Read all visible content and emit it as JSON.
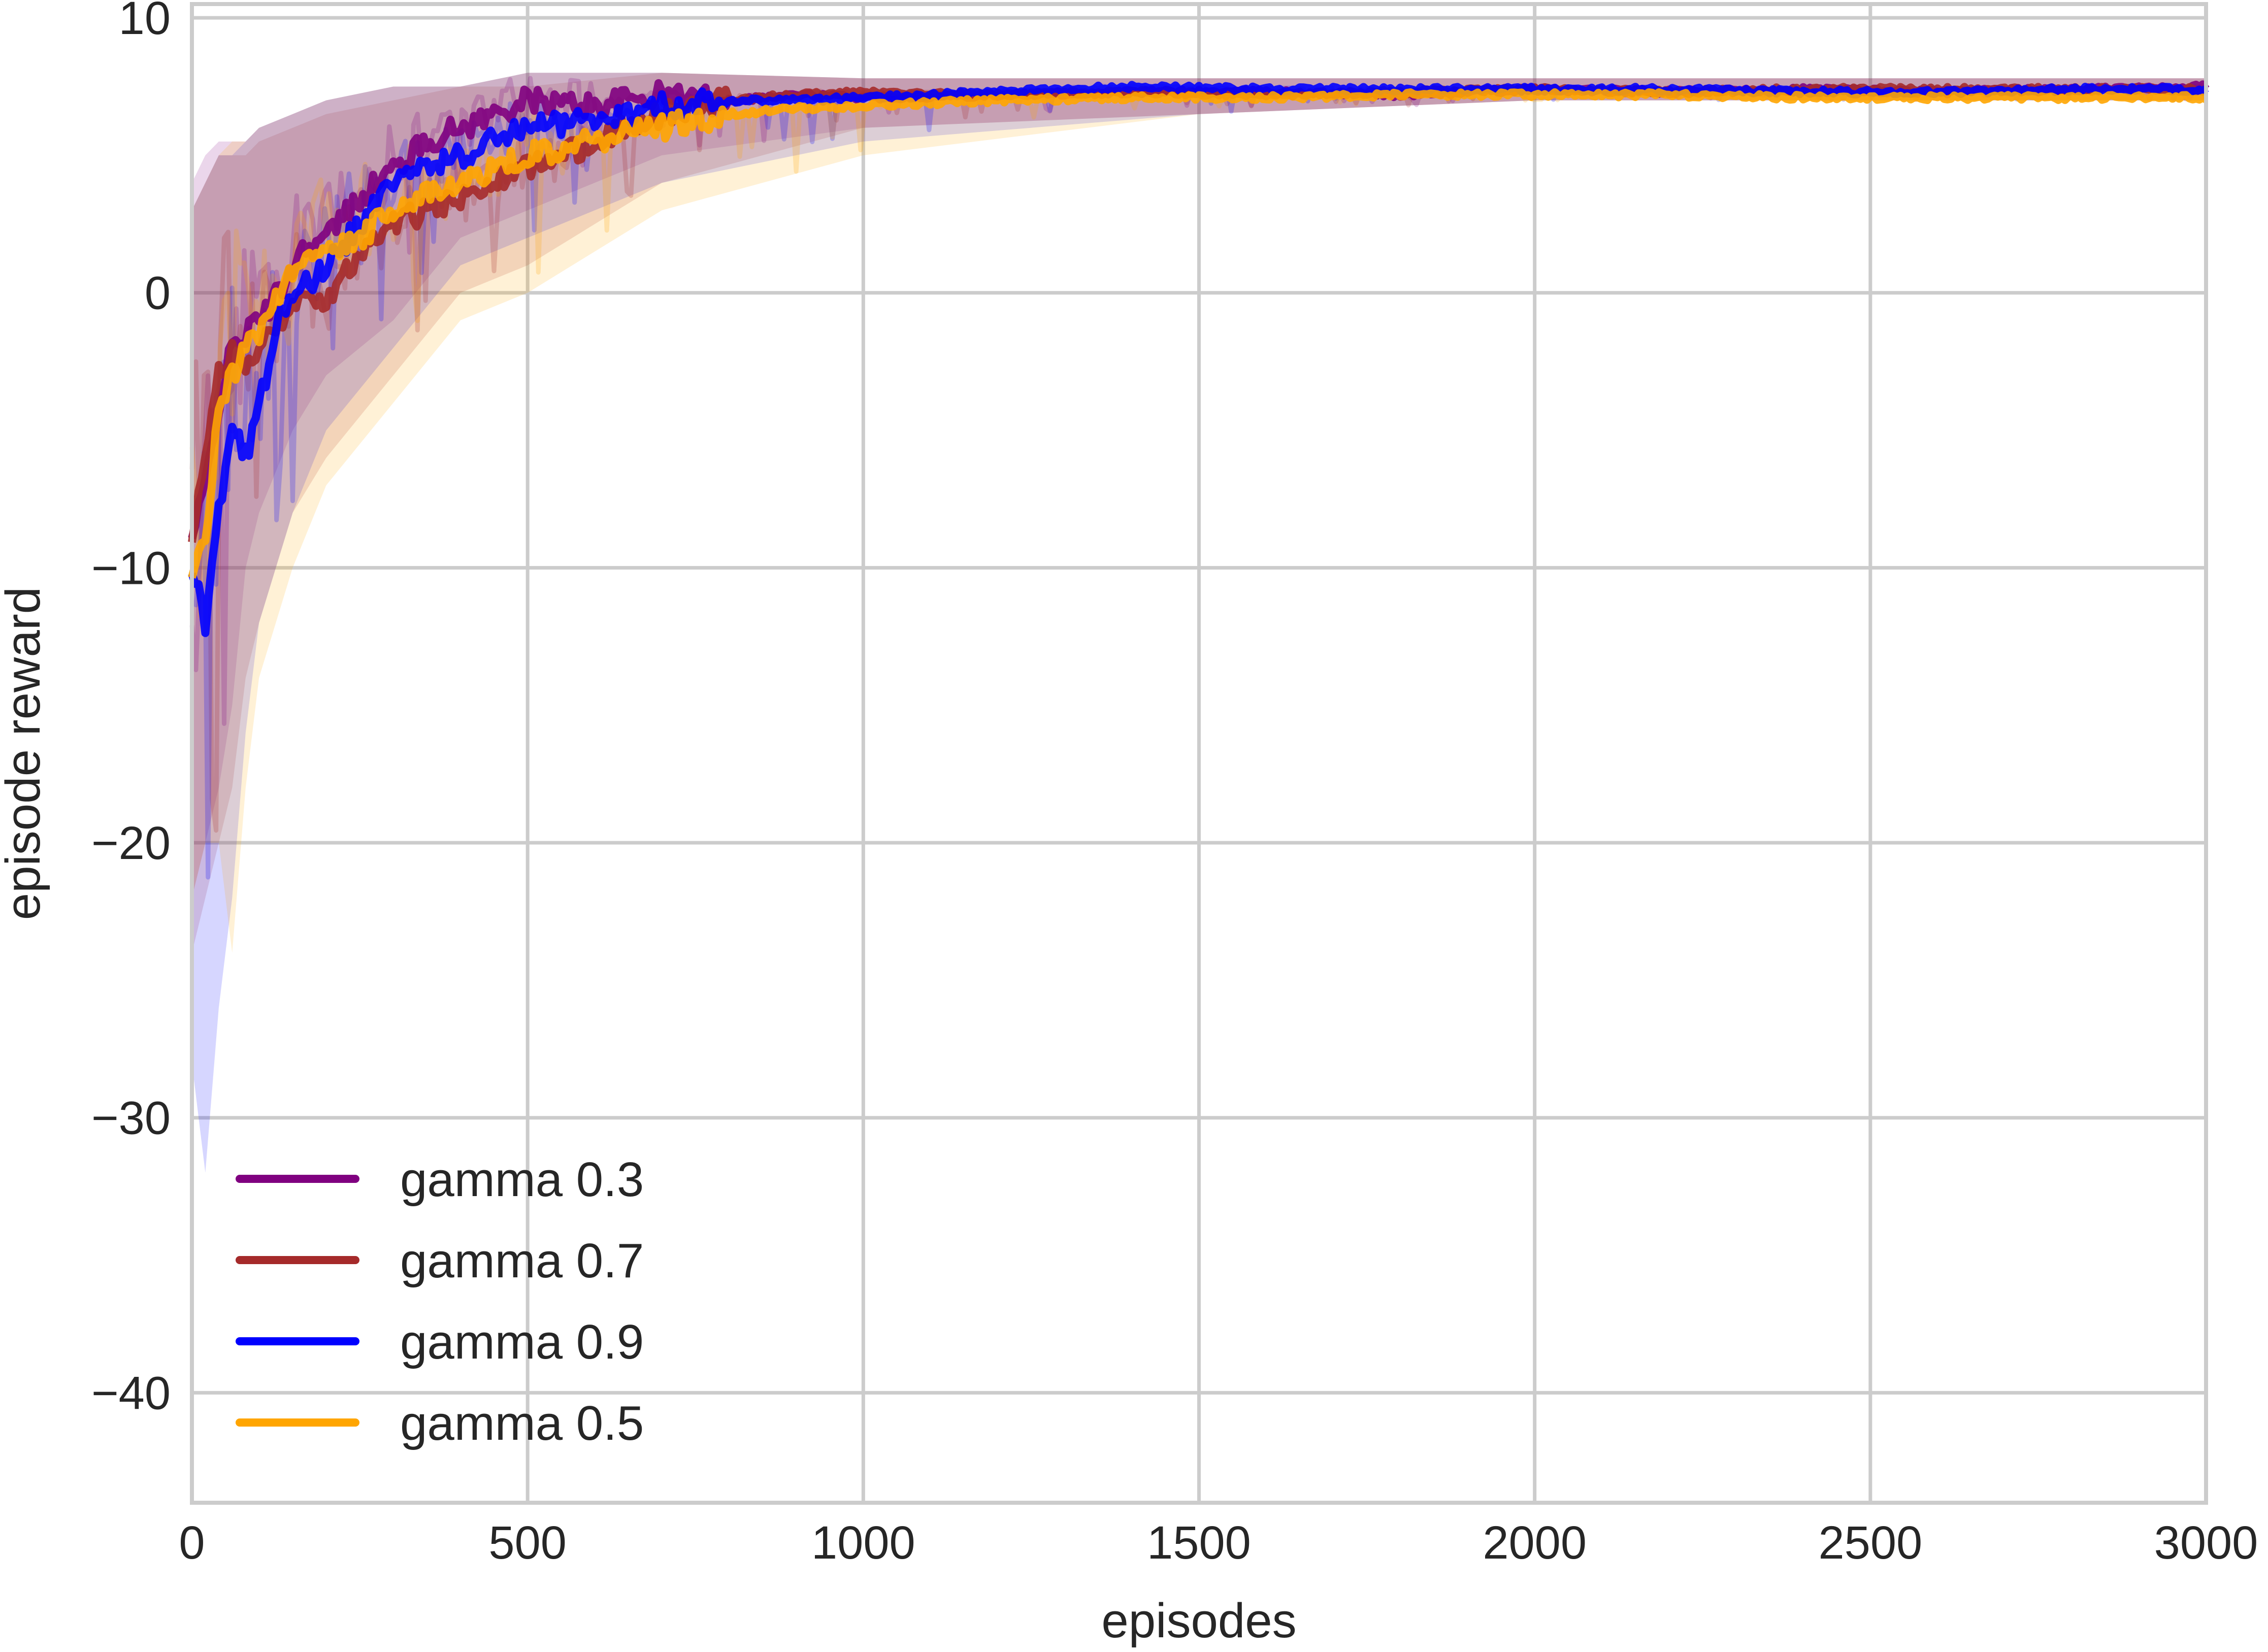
{
  "chart_data": {
    "type": "line",
    "title": "",
    "xlabel": "episodes",
    "ylabel": "episode reward",
    "xlim": [
      0,
      3000
    ],
    "ylim": [
      -44,
      10.5
    ],
    "xticks": [
      0,
      500,
      1000,
      1500,
      2000,
      2500,
      3000
    ],
    "xtick_labels": [
      "0",
      "500",
      "1000",
      "1500",
      "2000",
      "2500",
      "3000"
    ],
    "yticks": [
      10,
      0,
      -10,
      -20,
      -30,
      -40
    ],
    "ytick_labels": [
      "10",
      "0",
      "−10",
      "−20",
      "−30",
      "−40"
    ],
    "grid": true,
    "legend_position": "lower-left",
    "series": [
      {
        "name": "gamma 0.3",
        "color": "#800080",
        "smoothed": {
          "x": [
            0,
            20,
            40,
            60,
            80,
            100,
            130,
            160,
            200,
            250,
            300,
            350,
            400,
            450,
            500,
            600,
            700,
            800,
            900,
            1000,
            1200,
            1400,
            1600,
            1800,
            2000,
            2200,
            2400,
            2600,
            2800,
            3000
          ],
          "y": [
            -9,
            -7,
            -4,
            -2,
            -1.5,
            -1,
            0,
            1.5,
            2,
            3.5,
            4.5,
            5.5,
            6,
            6.5,
            7,
            6.8,
            7.2,
            7,
            7.2,
            7.1,
            7.2,
            7.3,
            7.3,
            7.2,
            7.4,
            7.3,
            7.4,
            7.3,
            7.4,
            7.5
          ]
        },
        "raw_band": {
          "x": [
            0,
            20,
            40,
            60,
            80,
            100,
            150,
            200,
            300,
            400,
            500,
            700,
            1000,
            1500,
            2000,
            2500,
            3000
          ],
          "lower": [
            -22,
            -20,
            -18,
            -15,
            -10,
            -8,
            -5,
            -3,
            -1,
            2,
            3,
            5,
            6,
            6.5,
            7,
            7,
            7
          ],
          "upper": [
            4,
            5,
            5.5,
            5.5,
            5.5,
            6,
            6.5,
            7,
            7.5,
            7.5,
            8,
            8,
            7.8,
            7.8,
            7.8,
            7.8,
            7.8
          ]
        }
      },
      {
        "name": "gamma 0.7",
        "color": "#a52a2a",
        "smoothed": {
          "x": [
            0,
            20,
            40,
            60,
            80,
            100,
            130,
            160,
            200,
            250,
            300,
            350,
            400,
            450,
            500,
            600,
            700,
            800,
            900,
            1000,
            1200,
            1400,
            1600,
            1800,
            2000,
            2200,
            2400,
            2600,
            2800,
            3000
          ],
          "y": [
            -9,
            -6,
            -3,
            -2,
            -2.5,
            -2,
            -1,
            0,
            -0.5,
            1.5,
            2.5,
            3,
            3.5,
            4,
            4.5,
            5.5,
            6.5,
            7,
            7.2,
            7.3,
            7.2,
            7.3,
            7.2,
            7.3,
            7.4,
            7.3,
            7.4,
            7.4,
            7.4,
            7.4
          ]
        },
        "raw_band": {
          "x": [
            0,
            20,
            40,
            60,
            80,
            100,
            150,
            200,
            300,
            400,
            500,
            700,
            1000,
            1500,
            2000,
            2500,
            3000
          ],
          "lower": [
            -24,
            -22,
            -20,
            -18,
            -14,
            -12,
            -8,
            -6,
            -3,
            0,
            1,
            4,
            6,
            6.5,
            7,
            7,
            7
          ],
          "upper": [
            3,
            4,
            5,
            5,
            5,
            5.5,
            6,
            6.5,
            7,
            7.5,
            7.5,
            8,
            7.8,
            7.8,
            7.8,
            7.8,
            7.8
          ]
        }
      },
      {
        "name": "gamma 0.9",
        "color": "#0000ff",
        "smoothed": {
          "x": [
            0,
            20,
            40,
            60,
            80,
            100,
            130,
            160,
            200,
            250,
            300,
            350,
            400,
            450,
            500,
            600,
            700,
            800,
            900,
            1000,
            1200,
            1400,
            1600,
            1800,
            2000,
            2200,
            2400,
            2600,
            2800,
            3000
          ],
          "y": [
            -10,
            -12,
            -8,
            -5,
            -6,
            -4,
            -1,
            0,
            1,
            2.5,
            4,
            4.5,
            5,
            5.5,
            6,
            6.3,
            6.8,
            7,
            7,
            7.1,
            7.3,
            7.5,
            7.4,
            7.4,
            7.4,
            7.4,
            7.3,
            7.3,
            7.4,
            7.4
          ]
        },
        "raw_band": {
          "x": [
            0,
            20,
            40,
            60,
            80,
            100,
            150,
            200,
            300,
            400,
            500,
            700,
            1000,
            1500,
            2000,
            2500,
            3000
          ],
          "lower": [
            -28,
            -32,
            -26,
            -22,
            -16,
            -12,
            -8,
            -5,
            -2,
            1,
            2,
            4,
            5.5,
            6.5,
            7,
            7,
            7
          ],
          "upper": [
            3,
            4,
            5,
            5,
            5.5,
            6,
            6.5,
            7,
            7.5,
            7.5,
            8,
            8,
            7.8,
            7.8,
            7.8,
            7.8,
            7.8
          ]
        }
      },
      {
        "name": "gamma 0.5",
        "color": "#ffa500",
        "smoothed": {
          "x": [
            0,
            20,
            40,
            60,
            80,
            100,
            130,
            160,
            200,
            250,
            300,
            350,
            400,
            450,
            500,
            600,
            700,
            800,
            900,
            1000,
            1200,
            1400,
            1600,
            1800,
            2000,
            2200,
            2400,
            2600,
            2800,
            3000
          ],
          "y": [
            -10,
            -9,
            -4,
            -3,
            -2,
            -1.5,
            0,
            1,
            1.5,
            2,
            3,
            3.5,
            4,
            4.5,
            5,
            5.5,
            6,
            6.5,
            6.7,
            6.8,
            7,
            7.1,
            7.1,
            7.2,
            7.2,
            7.2,
            7.1,
            7.1,
            7.1,
            7.1
          ]
        },
        "raw_band": {
          "x": [
            0,
            20,
            40,
            60,
            80,
            100,
            150,
            200,
            300,
            400,
            500,
            700,
            1000,
            1500,
            2000,
            2500,
            3000
          ],
          "lower": [
            -22,
            -20,
            -20,
            -24,
            -18,
            -14,
            -10,
            -7,
            -4,
            -1,
            0,
            3,
            5,
            6.5,
            7,
            7,
            7
          ],
          "upper": [
            3,
            4,
            5,
            5.5,
            5.5,
            6,
            6.5,
            7,
            7.5,
            7.5,
            8,
            8,
            7.8,
            7.8,
            7.8,
            7.8,
            7.8
          ]
        }
      }
    ],
    "legend_order": [
      "gamma 0.3",
      "gamma 0.7",
      "gamma 0.9",
      "gamma 0.5"
    ]
  }
}
